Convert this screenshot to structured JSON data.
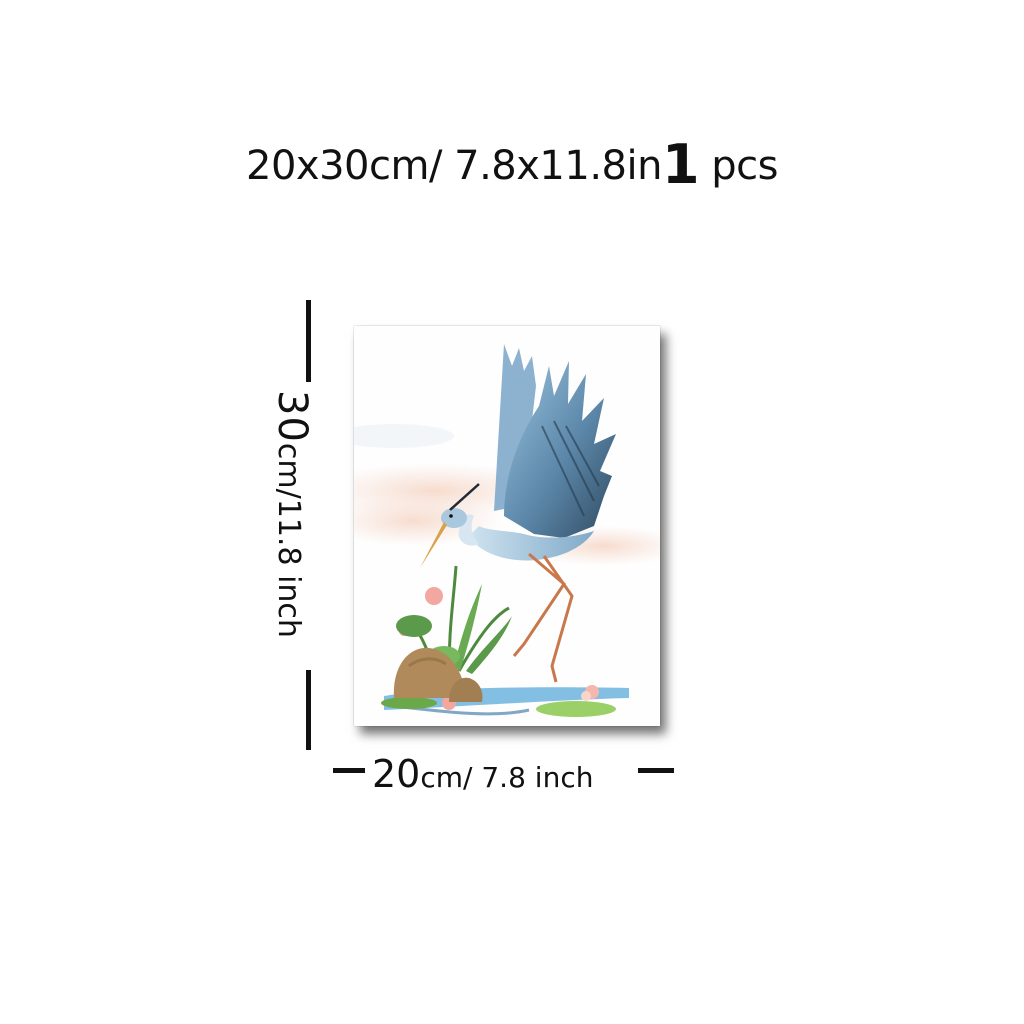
{
  "product": {
    "size_title": "20x30cm/ 7.8x11.8in",
    "quantity_number": "1",
    "quantity_unit": "pcs"
  },
  "dimensions": {
    "height_number": "30",
    "height_rest": "cm/11.8 inch",
    "width_number": "20",
    "width_rest": "cm/ 7.8 inch"
  },
  "artwork": {
    "subject": "watercolor heron with lotus",
    "colors": {
      "feather_dark": "#3d5a73",
      "feather_light": "#8fb8d6",
      "sky_blush": "#f6ddd2",
      "water": "#5aa9d8",
      "rock": "#b08a5a",
      "leaf": "#5a9a4a",
      "lotus": "#f2a7a0",
      "leg": "#c8784a"
    }
  }
}
